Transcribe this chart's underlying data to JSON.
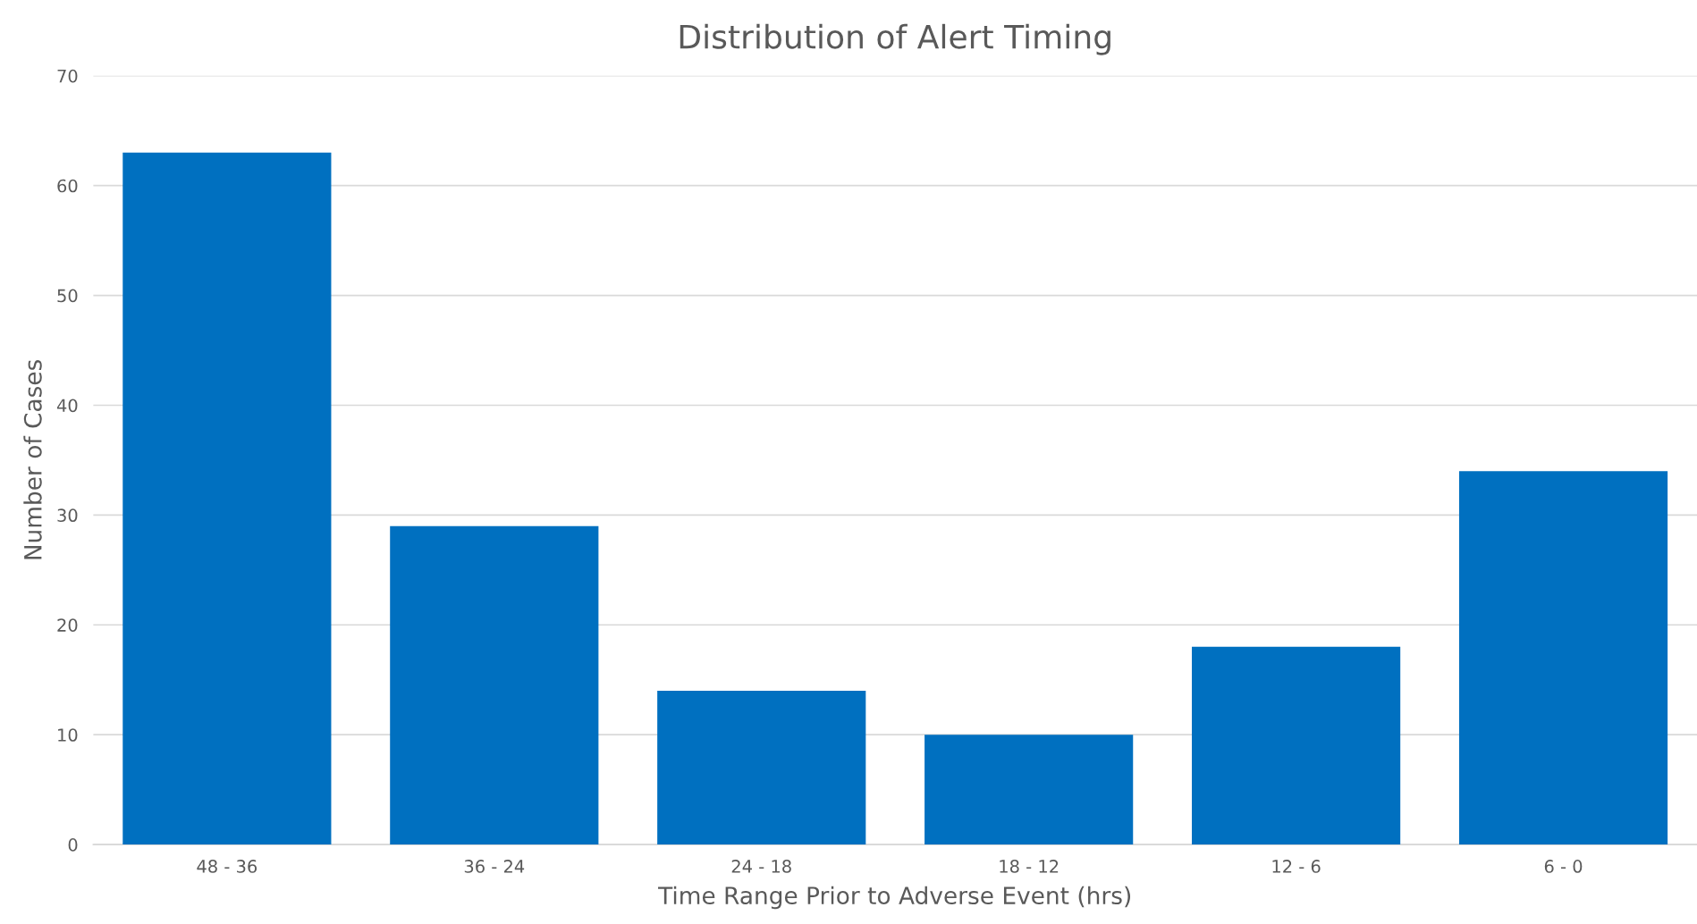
{
  "chart_data": {
    "type": "bar",
    "title": "Distribution of Alert Timing",
    "xlabel": "Time Range Prior to Adverse Event (hrs)",
    "ylabel": "Number of Cases",
    "categories": [
      "48 - 36",
      "36 - 24",
      "24 - 18",
      "18 - 12",
      "12 - 6",
      "6 - 0"
    ],
    "values": [
      63,
      29,
      14,
      10,
      18,
      34
    ],
    "color": "#0070c0",
    "ylim": [
      0,
      70
    ],
    "yticks": [
      0,
      10,
      20,
      30,
      40,
      50,
      60,
      70
    ],
    "grid": "y",
    "legend": false
  }
}
